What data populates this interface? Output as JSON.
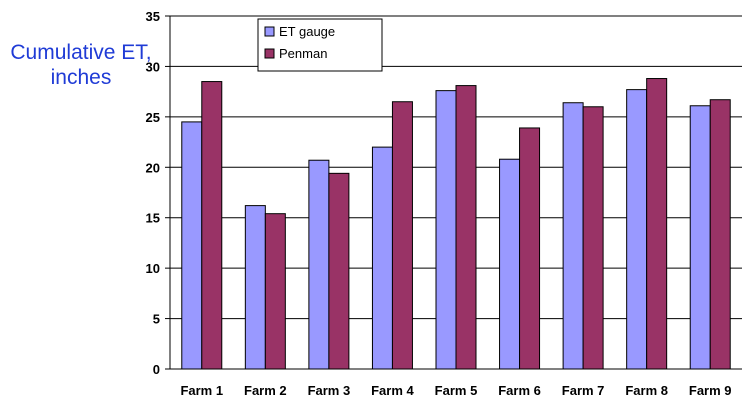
{
  "chart_data": {
    "type": "bar",
    "ylabel": "Cumulative ET, inches",
    "categories": [
      "Farm 1",
      "Farm 2",
      "Farm 3",
      "Farm 4",
      "Farm 5",
      "Farm 6",
      "Farm 7",
      "Farm 8",
      "Farm 9"
    ],
    "series": [
      {
        "name": "ET gauge",
        "color": "#9999ff",
        "values": [
          24.5,
          16.2,
          20.7,
          22.0,
          27.6,
          20.8,
          26.4,
          27.7,
          26.1
        ]
      },
      {
        "name": "Penman",
        "color": "#993366",
        "values": [
          28.5,
          15.4,
          19.4,
          26.5,
          28.1,
          23.9,
          26.0,
          28.8,
          26.7
        ]
      }
    ],
    "ylim": [
      0,
      35
    ],
    "yticks": [
      0,
      5,
      10,
      15,
      20,
      25,
      30,
      35
    ],
    "grid": true,
    "legend": "top-left"
  }
}
